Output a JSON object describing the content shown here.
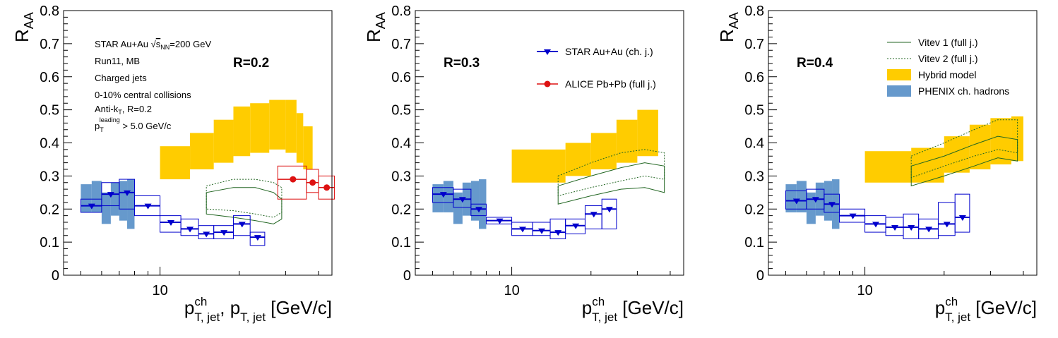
{
  "colors": {
    "star": "#0000cc",
    "alice": "#dd1111",
    "hybrid": "#ffcc00",
    "phenix": "#6699cc",
    "vitev": "#226622"
  },
  "chart_data": [
    {
      "type": "scatter",
      "panel": "R=0.2",
      "title": "R=0.2",
      "ylabel_main": "R",
      "ylabel_sub": "AA",
      "xlabel_parts": [
        "p",
        "ch",
        "T, jet",
        ", p",
        "T, jet",
        " [GeV/c]"
      ],
      "x_scale": "log",
      "xlim": [
        4.3,
        45
      ],
      "ylim": [
        0,
        0.8
      ],
      "y_ticks": [
        "0",
        "0.1",
        "0.2",
        "0.3",
        "0.4",
        "0.5",
        "0.6",
        "0.7",
        "0.8"
      ],
      "x_tick_labels": [
        {
          "x": 10,
          "label": "10"
        }
      ],
      "annotations": [
        "STAR Au+Au √s_NN=200 GeV",
        "Run11, MB",
        "Charged jets",
        "0-10% central collisions",
        "Anti-k_T, R=0.2",
        "p_T^leading > 5.0 GeV/c"
      ],
      "annotation_rich": {
        "l1": {
          "a": "STAR Au+Au ",
          "b": "s",
          "c": "NN",
          "d": "=200 GeV"
        },
        "l5": {
          "a": "Anti-k",
          "b": "T",
          "c": ", R=0.2"
        },
        "l6": {
          "a": "p",
          "b": "T",
          "c": "leading",
          "d": " > 5.0 GeV/c"
        }
      },
      "star": [
        {
          "x": 5.5,
          "y": 0.21,
          "xlo": 5.0,
          "xhi": 6.0,
          "ylo": 0.19,
          "yhi": 0.23
        },
        {
          "x": 6.5,
          "y": 0.245,
          "xlo": 6.0,
          "xhi": 7.0,
          "ylo": 0.21,
          "yhi": 0.28
        },
        {
          "x": 7.5,
          "y": 0.25,
          "xlo": 7.0,
          "xhi": 8.0,
          "ylo": 0.2,
          "yhi": 0.29
        },
        {
          "x": 9.0,
          "y": 0.21,
          "xlo": 8.0,
          "xhi": 10.0,
          "ylo": 0.18,
          "yhi": 0.24
        },
        {
          "x": 11.0,
          "y": 0.16,
          "xlo": 10.0,
          "xhi": 12.0,
          "ylo": 0.13,
          "yhi": 0.18
        },
        {
          "x": 13.0,
          "y": 0.14,
          "xlo": 12.0,
          "xhi": 14.0,
          "ylo": 0.12,
          "yhi": 0.17
        },
        {
          "x": 15.0,
          "y": 0.125,
          "xlo": 14.0,
          "xhi": 16.0,
          "ylo": 0.11,
          "yhi": 0.15
        },
        {
          "x": 17.5,
          "y": 0.13,
          "xlo": 16.0,
          "xhi": 19.0,
          "ylo": 0.11,
          "yhi": 0.15
        },
        {
          "x": 20.5,
          "y": 0.155,
          "xlo": 19.0,
          "xhi": 22.0,
          "ylo": 0.12,
          "yhi": 0.18
        },
        {
          "x": 23.5,
          "y": 0.115,
          "xlo": 22.0,
          "xhi": 25.0,
          "ylo": 0.09,
          "yhi": 0.13
        }
      ],
      "alice": [
        {
          "x": 32,
          "y": 0.29,
          "xlo": 28,
          "xhi": 36,
          "ylo": 0.23,
          "yhi": 0.33
        },
        {
          "x": 38,
          "y": 0.28,
          "xlo": 36,
          "xhi": 40,
          "ylo": 0.25,
          "yhi": 0.32
        },
        {
          "x": 43,
          "y": 0.265,
          "xlo": 40,
          "xhi": 46,
          "ylo": 0.23,
          "yhi": 0.3
        }
      ],
      "hybrid": [
        {
          "xlo": 10,
          "xhi": 13,
          "ylo": 0.29,
          "yhi": 0.39
        },
        {
          "xlo": 13,
          "xhi": 16,
          "ylo": 0.32,
          "yhi": 0.43
        },
        {
          "xlo": 16,
          "xhi": 19,
          "ylo": 0.34,
          "yhi": 0.47
        },
        {
          "xlo": 19,
          "xhi": 22,
          "ylo": 0.36,
          "yhi": 0.51
        },
        {
          "xlo": 22,
          "xhi": 26,
          "ylo": 0.37,
          "yhi": 0.52
        },
        {
          "xlo": 26,
          "xhi": 30,
          "ylo": 0.38,
          "yhi": 0.53
        },
        {
          "xlo": 30,
          "xhi": 33,
          "ylo": 0.37,
          "yhi": 0.53
        },
        {
          "xlo": 33,
          "xhi": 35,
          "ylo": 0.34,
          "yhi": 0.49
        },
        {
          "xlo": 35,
          "xhi": 38,
          "ylo": 0.32,
          "yhi": 0.45
        }
      ],
      "phenix": [
        {
          "xlo": 5.0,
          "xhi": 5.5,
          "ylo": 0.19,
          "yhi": 0.275
        },
        {
          "xlo": 5.5,
          "xhi": 6.0,
          "ylo": 0.19,
          "yhi": 0.285
        },
        {
          "xlo": 6.0,
          "xhi": 6.5,
          "ylo": 0.155,
          "yhi": 0.25
        },
        {
          "xlo": 6.5,
          "xhi": 7.0,
          "ylo": 0.18,
          "yhi": 0.28
        },
        {
          "xlo": 7.0,
          "xhi": 7.5,
          "ylo": 0.165,
          "yhi": 0.285
        },
        {
          "xlo": 7.5,
          "xhi": 8.0,
          "ylo": 0.14,
          "yhi": 0.29
        }
      ],
      "vitev1": {
        "x": [
          15,
          19,
          23,
          27,
          29
        ],
        "upper": [
          0.25,
          0.265,
          0.265,
          0.25,
          0.23
        ],
        "lower": [
          0.185,
          0.175,
          0.165,
          0.155,
          0.17
        ]
      },
      "vitev2": {
        "x": [
          15,
          19,
          23,
          27,
          29
        ],
        "upper": [
          0.27,
          0.29,
          0.29,
          0.28,
          0.265
        ],
        "lower": [
          0.2,
          0.195,
          0.185,
          0.175,
          0.19
        ]
      }
    },
    {
      "type": "scatter",
      "panel": "R=0.3",
      "title": "R=0.3",
      "ylabel_main": "R",
      "ylabel_sub": "AA",
      "xlabel_parts": [
        "p",
        "ch",
        "T, jet",
        "",
        "",
        " [GeV/c]"
      ],
      "x_scale": "log",
      "xlim": [
        4.3,
        45
      ],
      "ylim": [
        0,
        0.8
      ],
      "y_ticks": [
        "0",
        "0.1",
        "0.2",
        "0.3",
        "0.4",
        "0.5",
        "0.6",
        "0.7",
        "0.8"
      ],
      "x_tick_labels": [
        {
          "x": 10,
          "label": "10"
        }
      ],
      "legend": [
        {
          "label": "STAR Au+Au (ch. j.)",
          "kind": "star"
        },
        {
          "label": "ALICE Pb+Pb (full j.)",
          "kind": "alice"
        }
      ],
      "star": [
        {
          "x": 5.5,
          "y": 0.245,
          "xlo": 5.0,
          "xhi": 6.0,
          "ylo": 0.22,
          "yhi": 0.265
        },
        {
          "x": 6.5,
          "y": 0.23,
          "xlo": 6.0,
          "xhi": 7.0,
          "ylo": 0.205,
          "yhi": 0.26
        },
        {
          "x": 7.5,
          "y": 0.2,
          "xlo": 7.0,
          "xhi": 8.0,
          "ylo": 0.18,
          "yhi": 0.215
        },
        {
          "x": 9.0,
          "y": 0.165,
          "xlo": 8.0,
          "xhi": 10.0,
          "ylo": 0.155,
          "yhi": 0.175
        },
        {
          "x": 11.0,
          "y": 0.14,
          "xlo": 10.0,
          "xhi": 12.0,
          "ylo": 0.12,
          "yhi": 0.16
        },
        {
          "x": 13.0,
          "y": 0.135,
          "xlo": 12.0,
          "xhi": 14.0,
          "ylo": 0.12,
          "yhi": 0.16
        },
        {
          "x": 15.0,
          "y": 0.13,
          "xlo": 14.0,
          "xhi": 16.0,
          "ylo": 0.11,
          "yhi": 0.17
        },
        {
          "x": 17.5,
          "y": 0.15,
          "xlo": 16.0,
          "xhi": 19.0,
          "ylo": 0.125,
          "yhi": 0.17
        },
        {
          "x": 20.5,
          "y": 0.185,
          "xlo": 19.0,
          "xhi": 22.0,
          "ylo": 0.14,
          "yhi": 0.21
        },
        {
          "x": 23.5,
          "y": 0.2,
          "xlo": 22.0,
          "xhi": 25.0,
          "ylo": 0.14,
          "yhi": 0.23
        }
      ],
      "hybrid": [
        {
          "xlo": 10,
          "xhi": 16,
          "ylo": 0.28,
          "yhi": 0.38
        },
        {
          "xlo": 16,
          "xhi": 20,
          "ylo": 0.3,
          "yhi": 0.4
        },
        {
          "xlo": 20,
          "xhi": 25,
          "ylo": 0.32,
          "yhi": 0.43
        },
        {
          "xlo": 25,
          "xhi": 30,
          "ylo": 0.34,
          "yhi": 0.47
        },
        {
          "xlo": 30,
          "xhi": 36,
          "ylo": 0.36,
          "yhi": 0.5
        }
      ],
      "phenix": [
        {
          "xlo": 5.0,
          "xhi": 5.5,
          "ylo": 0.19,
          "yhi": 0.275
        },
        {
          "xlo": 5.5,
          "xhi": 6.0,
          "ylo": 0.19,
          "yhi": 0.285
        },
        {
          "xlo": 6.0,
          "xhi": 6.5,
          "ylo": 0.155,
          "yhi": 0.25
        },
        {
          "xlo": 6.5,
          "xhi": 7.0,
          "ylo": 0.18,
          "yhi": 0.28
        },
        {
          "xlo": 7.0,
          "xhi": 7.5,
          "ylo": 0.165,
          "yhi": 0.285
        },
        {
          "xlo": 7.5,
          "xhi": 8.0,
          "ylo": 0.14,
          "yhi": 0.29
        }
      ],
      "vitev1": {
        "x": [
          15,
          20,
          26,
          32,
          38
        ],
        "upper": [
          0.27,
          0.3,
          0.325,
          0.34,
          0.33
        ],
        "lower": [
          0.215,
          0.24,
          0.26,
          0.265,
          0.25
        ]
      },
      "vitev2": {
        "x": [
          15,
          20,
          26,
          32,
          38
        ],
        "upper": [
          0.3,
          0.34,
          0.37,
          0.38,
          0.37
        ],
        "lower": [
          0.24,
          0.265,
          0.285,
          0.3,
          0.29
        ]
      }
    },
    {
      "type": "scatter",
      "panel": "R=0.4",
      "title": "R=0.4",
      "ylabel_main": "R",
      "ylabel_sub": "AA",
      "xlabel_parts": [
        "p",
        "ch",
        "T, jet",
        "",
        "",
        " [GeV/c]"
      ],
      "x_scale": "log",
      "xlim": [
        4.3,
        45
      ],
      "ylim": [
        0,
        0.8
      ],
      "y_ticks": [
        "0",
        "0.1",
        "0.2",
        "0.3",
        "0.4",
        "0.5",
        "0.6",
        "0.7",
        "0.8"
      ],
      "x_tick_labels": [
        {
          "x": 10,
          "label": "10"
        }
      ],
      "legend": [
        {
          "label": "Vitev 1 (full j.)",
          "kind": "vitev1"
        },
        {
          "label": "Vitev 2 (full j.)",
          "kind": "vitev2"
        },
        {
          "label": "Hybrid model",
          "kind": "hybrid"
        },
        {
          "label": "PHENIX ch. hadrons",
          "kind": "phenix"
        }
      ],
      "star": [
        {
          "x": 5.5,
          "y": 0.225,
          "xlo": 5.0,
          "xhi": 6.0,
          "ylo": 0.2,
          "yhi": 0.255
        },
        {
          "x": 6.5,
          "y": 0.23,
          "xlo": 6.0,
          "xhi": 7.0,
          "ylo": 0.2,
          "yhi": 0.26
        },
        {
          "x": 7.5,
          "y": 0.215,
          "xlo": 7.0,
          "xhi": 8.0,
          "ylo": 0.19,
          "yhi": 0.245
        },
        {
          "x": 9.0,
          "y": 0.18,
          "xlo": 8.0,
          "xhi": 10.0,
          "ylo": 0.16,
          "yhi": 0.2
        },
        {
          "x": 11.0,
          "y": 0.155,
          "xlo": 10.0,
          "xhi": 12.0,
          "ylo": 0.13,
          "yhi": 0.18
        },
        {
          "x": 13.0,
          "y": 0.145,
          "xlo": 12.0,
          "xhi": 14.0,
          "ylo": 0.12,
          "yhi": 0.175
        },
        {
          "x": 15.0,
          "y": 0.145,
          "xlo": 14.0,
          "xhi": 16.0,
          "ylo": 0.11,
          "yhi": 0.185
        },
        {
          "x": 17.5,
          "y": 0.14,
          "xlo": 16.0,
          "xhi": 19.0,
          "ylo": 0.11,
          "yhi": 0.17
        },
        {
          "x": 20.5,
          "y": 0.155,
          "xlo": 19.0,
          "xhi": 22.0,
          "ylo": 0.12,
          "yhi": 0.22
        },
        {
          "x": 23.5,
          "y": 0.175,
          "xlo": 22.0,
          "xhi": 25.0,
          "ylo": 0.13,
          "yhi": 0.245
        }
      ],
      "hybrid": [
        {
          "xlo": 10,
          "xhi": 15,
          "ylo": 0.28,
          "yhi": 0.375
        },
        {
          "xlo": 15,
          "xhi": 20,
          "ylo": 0.28,
          "yhi": 0.385
        },
        {
          "xlo": 20,
          "xhi": 25,
          "ylo": 0.31,
          "yhi": 0.42
        },
        {
          "xlo": 25,
          "xhi": 30,
          "ylo": 0.32,
          "yhi": 0.455
        },
        {
          "xlo": 30,
          "xhi": 36,
          "ylo": 0.335,
          "yhi": 0.475
        },
        {
          "xlo": 36,
          "xhi": 40,
          "ylo": 0.345,
          "yhi": 0.48
        }
      ],
      "phenix": [
        {
          "xlo": 5.0,
          "xhi": 5.5,
          "ylo": 0.19,
          "yhi": 0.275
        },
        {
          "xlo": 5.5,
          "xhi": 6.0,
          "ylo": 0.19,
          "yhi": 0.285
        },
        {
          "xlo": 6.0,
          "xhi": 6.5,
          "ylo": 0.155,
          "yhi": 0.25
        },
        {
          "xlo": 6.5,
          "xhi": 7.0,
          "ylo": 0.18,
          "yhi": 0.28
        },
        {
          "xlo": 7.0,
          "xhi": 7.5,
          "ylo": 0.165,
          "yhi": 0.285
        },
        {
          "xlo": 7.5,
          "xhi": 8.0,
          "ylo": 0.14,
          "yhi": 0.29
        }
      ],
      "vitev1": {
        "x": [
          15,
          20,
          26,
          32,
          38
        ],
        "upper": [
          0.33,
          0.36,
          0.395,
          0.42,
          0.41
        ],
        "lower": [
          0.27,
          0.3,
          0.33,
          0.355,
          0.345
        ]
      },
      "vitev2": {
        "x": [
          15,
          20,
          26,
          32,
          38
        ],
        "upper": [
          0.36,
          0.4,
          0.44,
          0.47,
          0.47
        ],
        "lower": [
          0.295,
          0.33,
          0.36,
          0.38,
          0.37
        ]
      }
    }
  ]
}
